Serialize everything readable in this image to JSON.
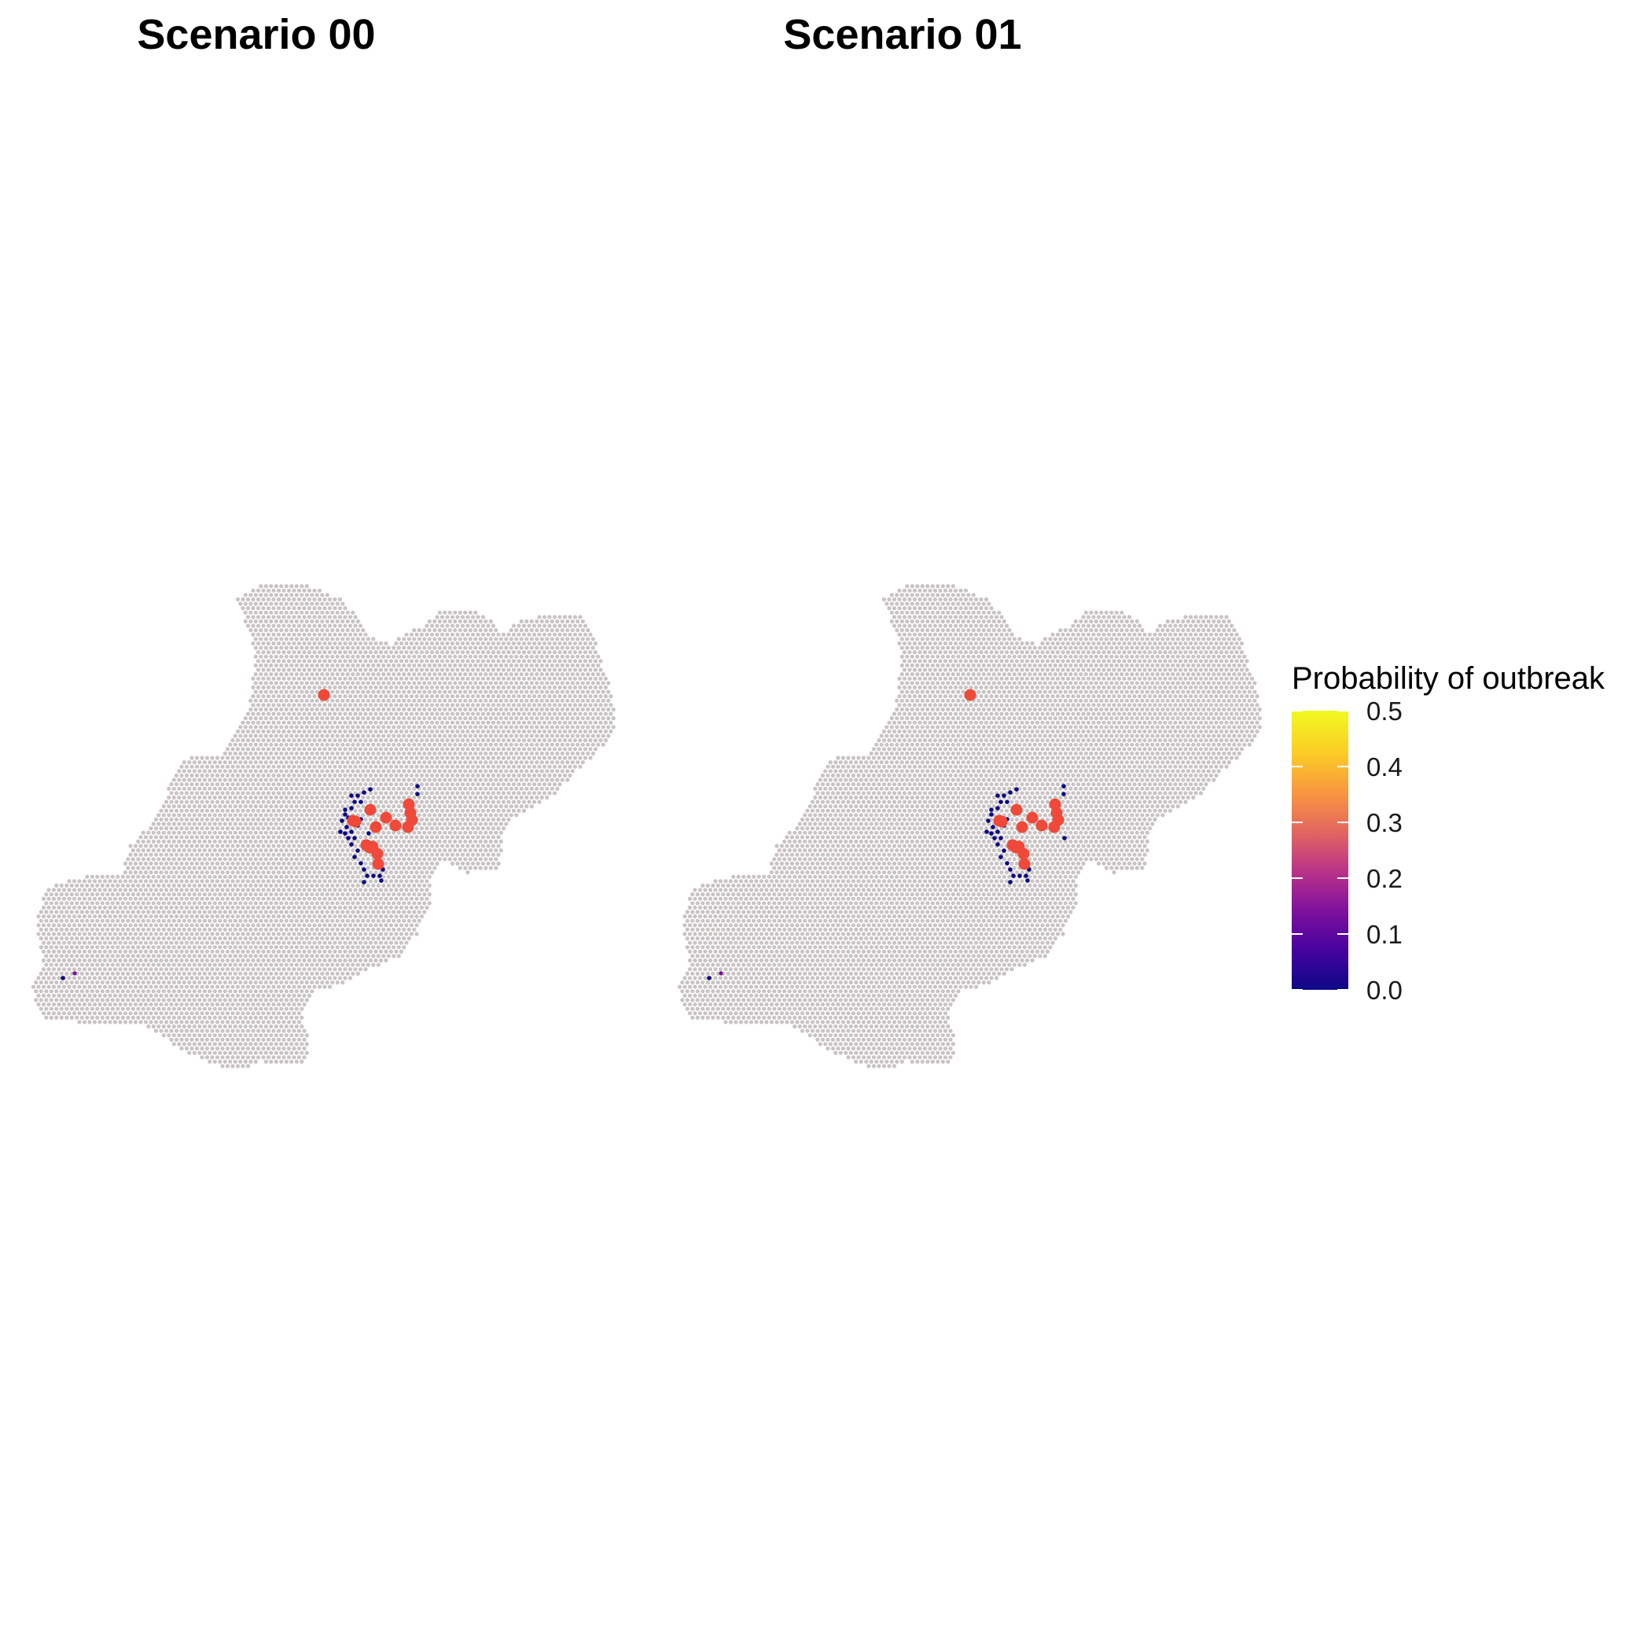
{
  "figure": {
    "panels": [
      {
        "title": "Scenario 00"
      },
      {
        "title": "Scenario 01"
      }
    ]
  },
  "colors": {
    "background_cell": "#c9c3c3",
    "outbreak_site": "#f0493a",
    "scale": [
      "#0d0887",
      "#46039f",
      "#7e0f9e",
      "#b83289",
      "#e16462",
      "#f89441",
      "#fccd25",
      "#f0f921"
    ]
  },
  "legend": {
    "title": "Probability of outbreak",
    "min": 0.0,
    "max": 0.5,
    "ticks": [
      "0.0",
      "0.1",
      "0.2",
      "0.3",
      "0.4",
      "0.5"
    ]
  },
  "chart_data": {
    "type": "hexbin-map",
    "scenarios": [
      {
        "title": "Scenario 00",
        "outbreak_sites_count": 16,
        "low_probability_cells_count": 34,
        "notable_probability_values": [
          0.0,
          0.1
        ]
      },
      {
        "title": "Scenario 01",
        "outbreak_sites_count": 16,
        "low_probability_cells_count": 32,
        "notable_probability_values": [
          0.0,
          0.1
        ]
      }
    ],
    "color_scale": {
      "label": "Probability of outbreak",
      "range": [
        0.0,
        0.5
      ],
      "ticks": [
        0.0,
        0.1,
        0.2,
        0.3,
        0.4,
        0.5
      ]
    }
  }
}
